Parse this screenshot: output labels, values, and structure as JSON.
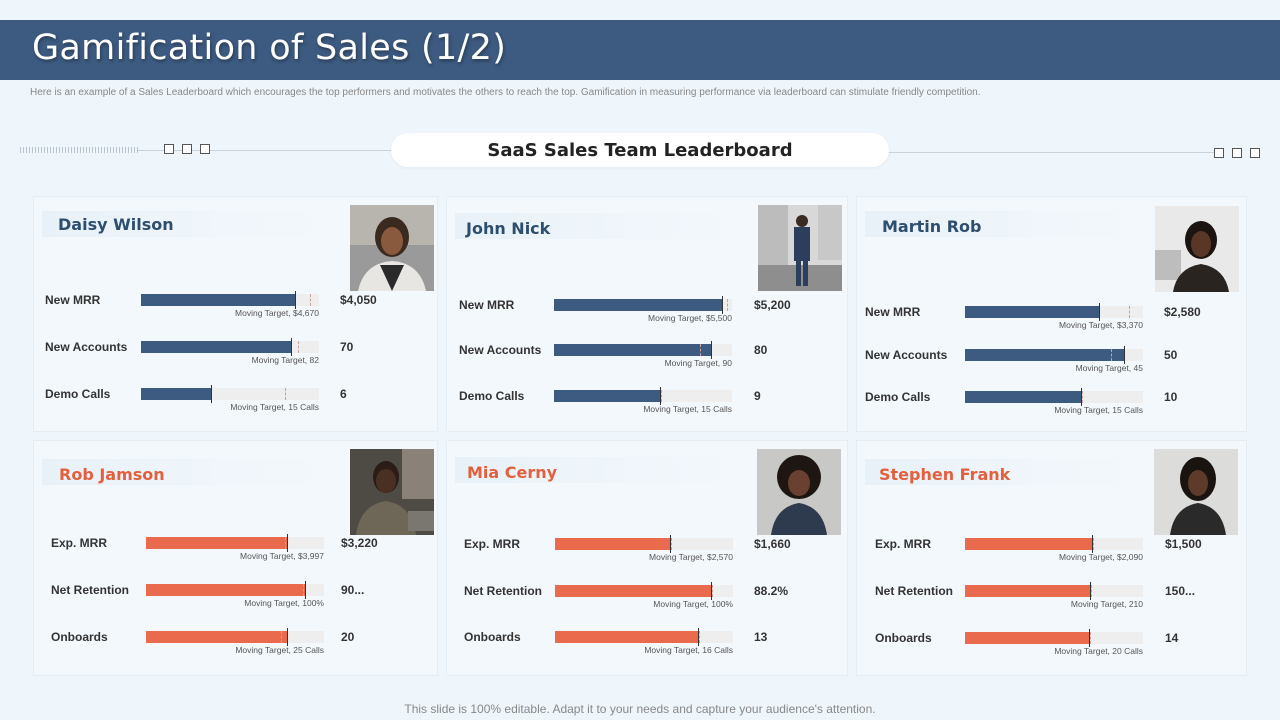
{
  "title": "Gamification of Sales (1/2)",
  "subtitle": "Here is an example of a Sales Leaderboard which encourages the top performers and motivates the others to reach the top. Gamification in measuring performance via leaderboard can stimulate friendly competition.",
  "leaderboard_title": "SaaS Sales Team Leaderboard",
  "footer": "This slide is 100% editable. Adapt it to your needs and capture your audience's attention.",
  "colors": {
    "header": "#3d5a80",
    "bar_blue": "#3d5a80",
    "bar_orange": "#ea6a4d",
    "name_blue": "#2e4e6f",
    "name_orange": "#e3603f"
  },
  "cards": [
    {
      "name": "Daisy Wilson",
      "color": "blue",
      "metrics": [
        {
          "label": "New MRR",
          "value": "$4,050",
          "target": "Moving Target, $4,670",
          "fill_pct": 87,
          "target_pct": 95
        },
        {
          "label": "New Accounts",
          "value": "70",
          "target": "Moving Target, 82",
          "fill_pct": 85,
          "target_pct": 88
        },
        {
          "label": "Demo Calls",
          "value": "6",
          "target": "Moving Target, 15 Calls",
          "fill_pct": 40,
          "target_pct": 81
        }
      ]
    },
    {
      "name": "John Nick",
      "color": "blue",
      "metrics": [
        {
          "label": "New MRR",
          "value": "$5,200",
          "target": "Moving Target, $5,500",
          "fill_pct": 95,
          "target_pct": 97
        },
        {
          "label": "New Accounts",
          "value": "80",
          "target": "Moving Target, 90",
          "fill_pct": 89,
          "target_pct": 82
        },
        {
          "label": "Demo Calls",
          "value": "9",
          "target": "Moving Target, 15 Calls",
          "fill_pct": 60,
          "target_pct": 60
        }
      ]
    },
    {
      "name": "Martin Rob",
      "color": "blue",
      "metrics": [
        {
          "label": "New MRR",
          "value": "$2,580",
          "target": "Moving Target, $3,370",
          "fill_pct": 76,
          "target_pct": 92
        },
        {
          "label": "New Accounts",
          "value": "50",
          "target": "Moving Target, 45",
          "fill_pct": 90,
          "target_pct": 82
        },
        {
          "label": "Demo Calls",
          "value": "10",
          "target": "Moving Target, 15 Calls",
          "fill_pct": 66,
          "target_pct": 66
        }
      ]
    },
    {
      "name": "Rob Jamson",
      "color": "orange",
      "metrics": [
        {
          "label": "Exp. MRR",
          "value": "$3,220",
          "target": "Moving Target, $3,997",
          "fill_pct": 80,
          "target_pct": 78
        },
        {
          "label": "Net Retention",
          "value": "90...",
          "target": "Moving Target, 100%",
          "fill_pct": 90,
          "target_pct": 88
        },
        {
          "label": "Onboards",
          "value": "20",
          "target": "Moving Target, 25 Calls",
          "fill_pct": 80,
          "target_pct": 76
        }
      ]
    },
    {
      "name": "Mia Cerny",
      "color": "orange",
      "metrics": [
        {
          "label": "Exp. MRR",
          "value": "$1,660",
          "target": "Moving Target, $2,570",
          "fill_pct": 65,
          "target_pct": 65
        },
        {
          "label": "Net Retention",
          "value": "88.2%",
          "target": "Moving Target, 100%",
          "fill_pct": 88,
          "target_pct": 88
        },
        {
          "label": "Onboards",
          "value": "13",
          "target": "Moving Target, 16 Calls",
          "fill_pct": 81,
          "target_pct": 81
        }
      ]
    },
    {
      "name": "Stephen Frank",
      "color": "orange",
      "metrics": [
        {
          "label": "Exp. MRR",
          "value": "$1,500",
          "target": "Moving Target, $2,090",
          "fill_pct": 72,
          "target_pct": 72
        },
        {
          "label": "Net Retention",
          "value": "150...",
          "target": "Moving Target, 210",
          "fill_pct": 71,
          "target_pct": 71
        },
        {
          "label": "Onboards",
          "value": "14",
          "target": "Moving Target, 20 Calls",
          "fill_pct": 70,
          "target_pct": 70
        }
      ]
    }
  ]
}
